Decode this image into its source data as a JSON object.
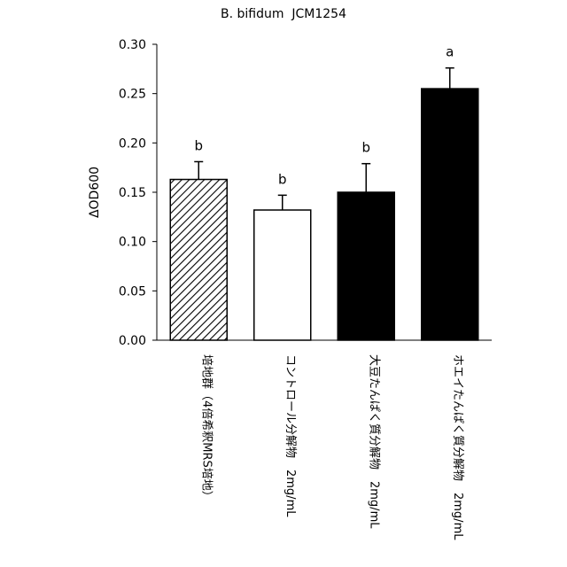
{
  "chart_data": {
    "type": "bar",
    "title": "B. bifidum  JCM1254",
    "xlabel": "",
    "ylabel": "ΔOD600",
    "ylim": [
      0,
      0.3
    ],
    "yticks": [
      "0.00",
      "0.05",
      "0.10",
      "0.15",
      "0.20",
      "0.25",
      "0.30"
    ],
    "grid": false,
    "categories": [
      "培地群（4倍希釈MRS培地）",
      "コントロール分解物　2mg/mL",
      "大豆たんぱく質分解物　2mg/mL",
      "ホエイたんぱく質分解物　2mg/mL"
    ],
    "values": [
      0.163,
      0.132,
      0.15,
      0.255
    ],
    "errors": [
      0.018,
      0.015,
      0.029,
      0.021
    ],
    "significance": [
      "b",
      "b",
      "b",
      "a"
    ],
    "fills": [
      "hatched",
      "white",
      "black",
      "black"
    ]
  },
  "colors": {
    "bar_dark": "#000000",
    "bar_light": "#ffffff",
    "axis": "#000000"
  }
}
